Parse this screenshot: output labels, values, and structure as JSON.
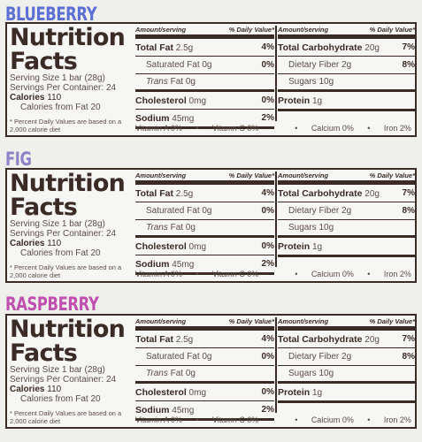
{
  "panels": [
    {
      "flavor": "BLUEBERRY",
      "flavor_color": "#5b6fd6"
    },
    {
      "flavor": "FIG",
      "flavor_color": "#8e82c7"
    },
    {
      "flavor": "RASPBERRY",
      "flavor_color": "#c04fb0"
    }
  ],
  "label": {
    "title_line1": "Nutrition",
    "title_line2": "Facts",
    "serving_size": "Serving Size 1 bar (28g)",
    "servings_per_container": "Servings Per Container: 24",
    "calories_label": "Calories",
    "calories_value": "110",
    "calories_from_fat": "Calories from Fat 20",
    "footnote": "* Percent Daily Values are based on a 2,000 calorie diet",
    "header_amount": "Amount/serving",
    "header_dv": "% Daily Value*",
    "total_fat_label": "Total Fat",
    "total_fat_value": "2.5g",
    "total_fat_pct": "4%",
    "sat_fat_label": "Saturated Fat",
    "sat_fat_value": "0g",
    "sat_fat_pct": "0%",
    "trans_fat_label": "Trans",
    "trans_fat_rest": "Fat 0g",
    "cholesterol_label": "Cholesterol",
    "cholesterol_value": "0mg",
    "cholesterol_pct": "0%",
    "sodium_label": "Sodium",
    "sodium_value": "45mg",
    "sodium_pct": "2%",
    "total_carb_label": "Total Carbohydrate",
    "total_carb_value": "20g",
    "total_carb_pct": "7%",
    "fiber_label": "Dietary Fiber",
    "fiber_value": "2g",
    "fiber_pct": "8%",
    "sugars_label": "Sugars",
    "sugars_value": "10g",
    "protein_label": "Protein",
    "protein_value": "1g",
    "vitamin_a": "Vitamin A 0%",
    "vitamin_c": "Vitamn C 0%",
    "calcium": "Calcium 0%",
    "iron": "Iron 2%",
    "bullet": "•"
  }
}
